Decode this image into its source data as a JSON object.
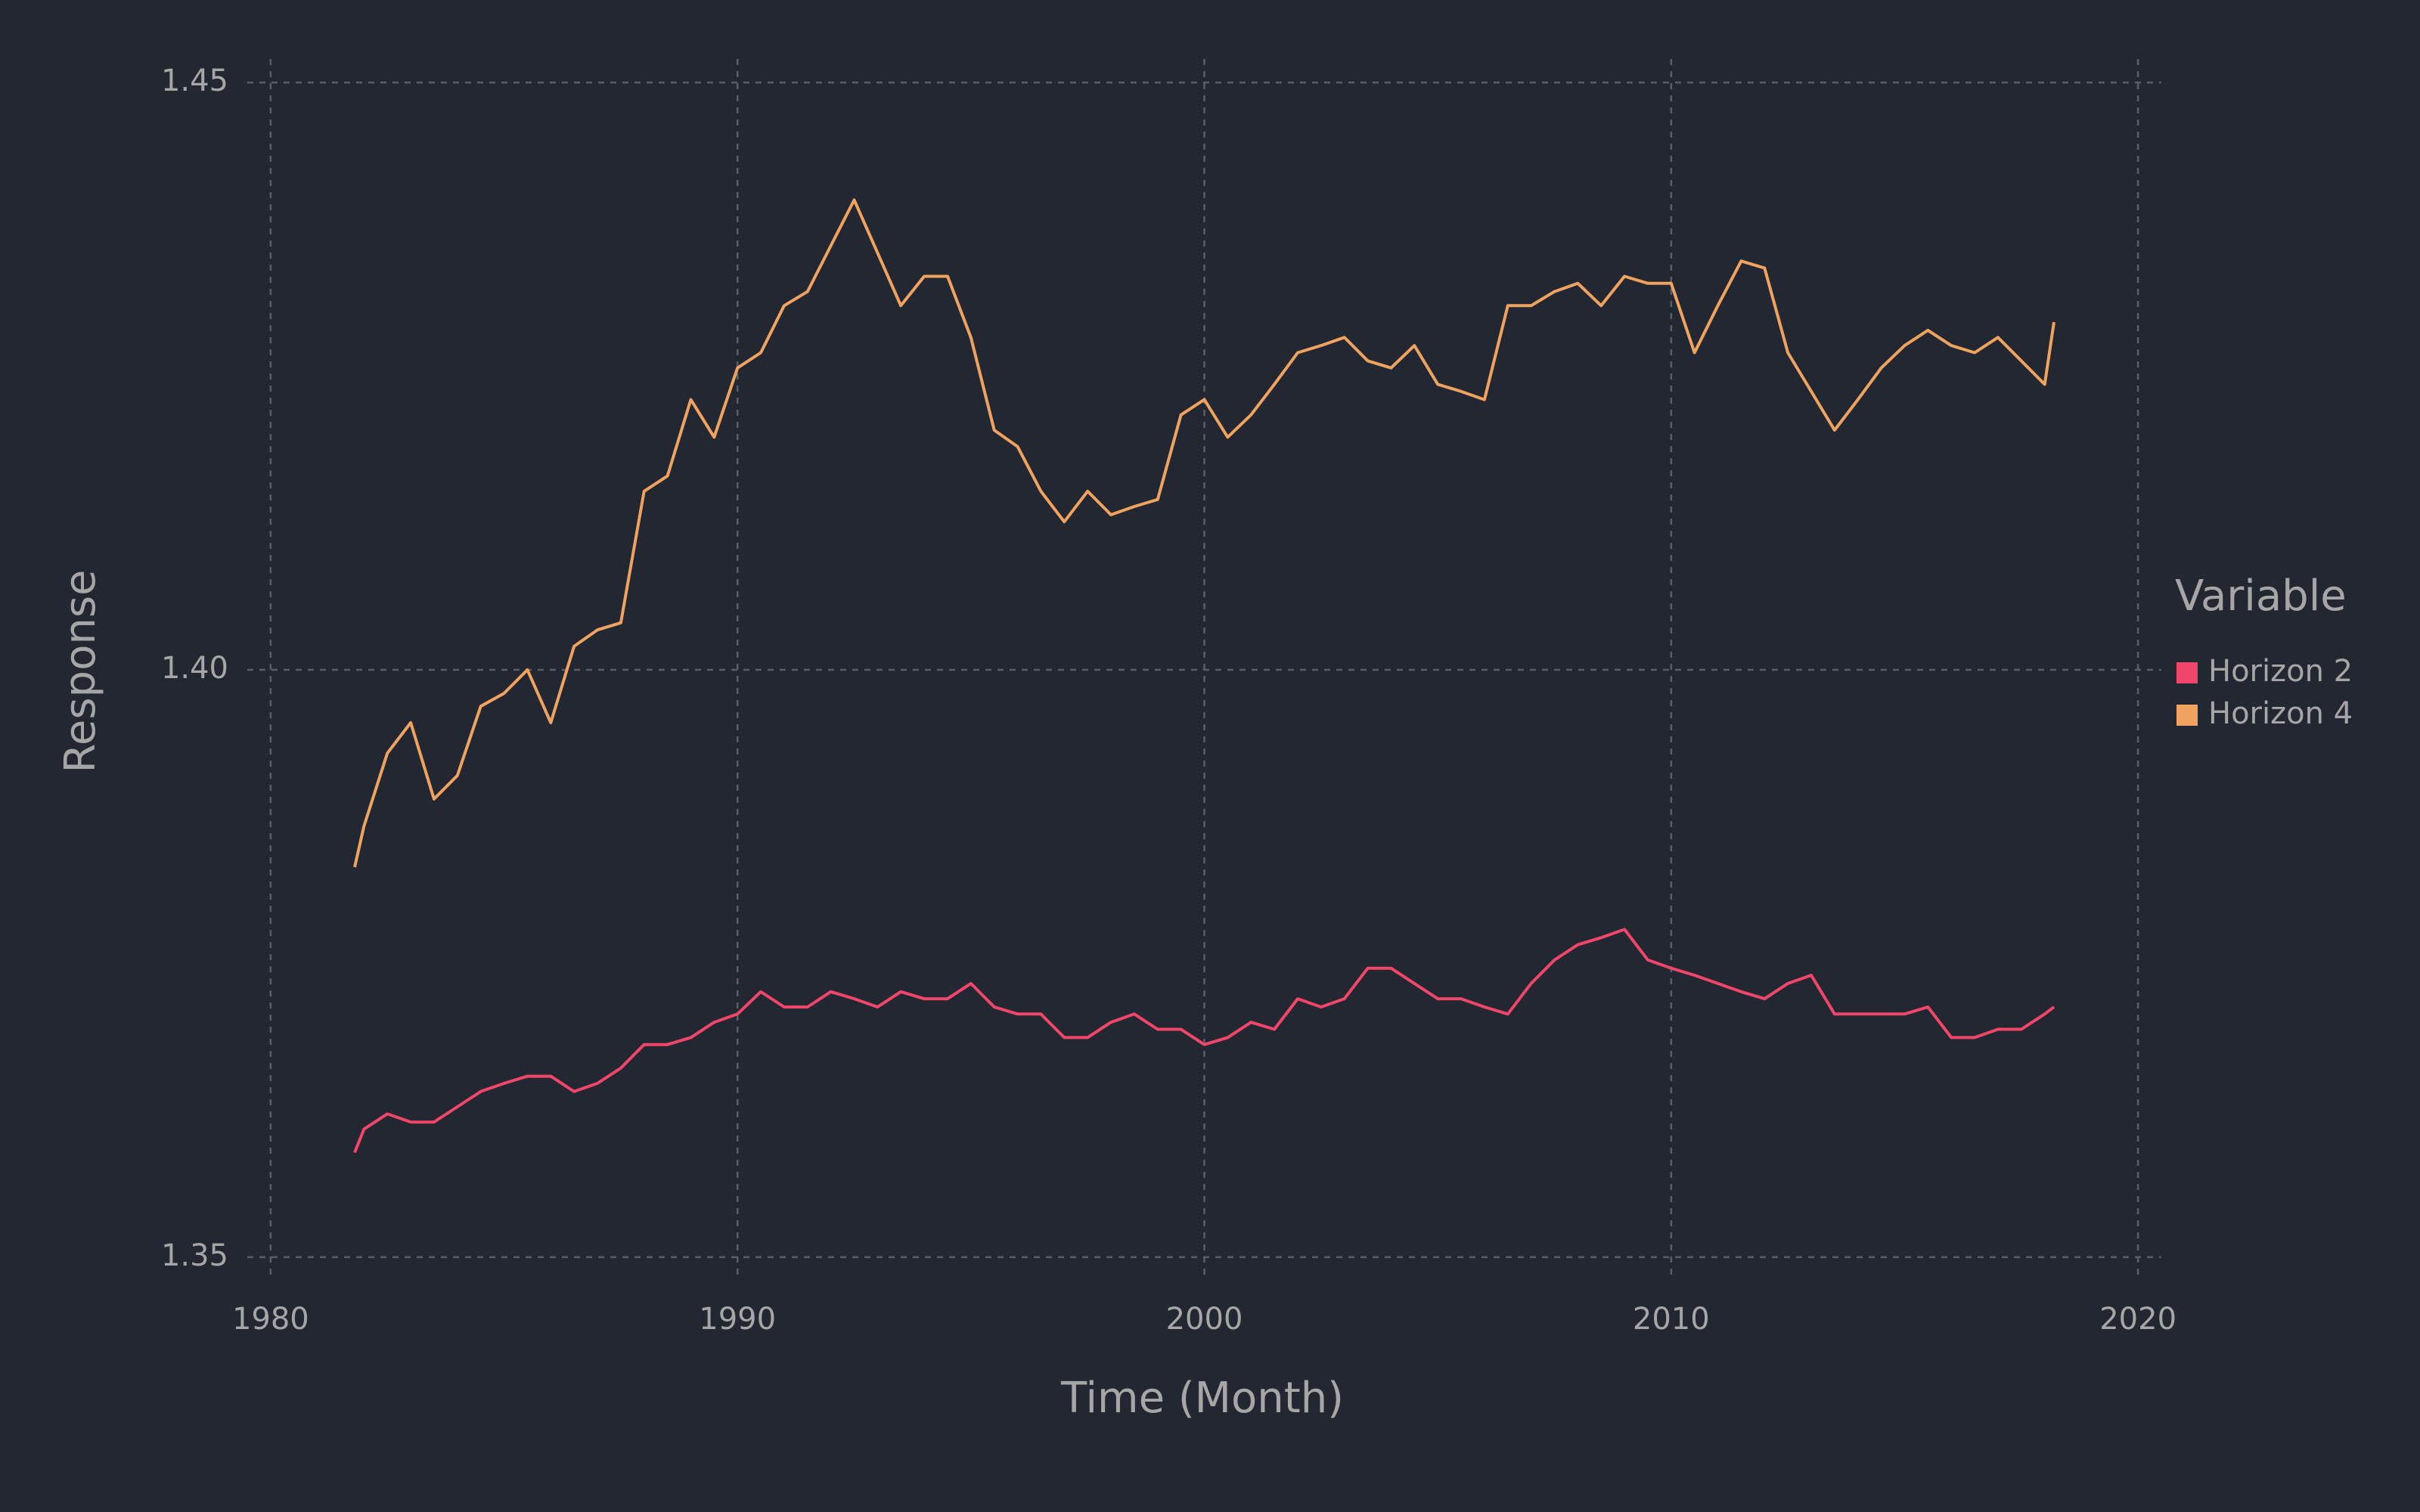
{
  "chart_data": {
    "type": "line",
    "x_label": "Time (Month)",
    "y_label": "Response",
    "legend_title": "Variable",
    "legend_position": "right",
    "grid": true,
    "xlim": [
      1979.5,
      2020.5
    ],
    "ylim": [
      1.348,
      1.452
    ],
    "xticks": [
      1980,
      1990,
      2000,
      2010,
      2020
    ],
    "yticks": [
      {
        "value": 1.35,
        "label": "1.35"
      },
      {
        "value": 1.4,
        "label": "1.40"
      },
      {
        "value": 1.45,
        "label": "1.45"
      }
    ],
    "x": [
      1981.8,
      1982.0,
      1982.5,
      1983.0,
      1983.5,
      1984.0,
      1984.5,
      1985.0,
      1985.5,
      1986.0,
      1986.5,
      1987.0,
      1987.5,
      1988.0,
      1988.5,
      1989.0,
      1989.5,
      1990.0,
      1990.5,
      1991.0,
      1991.5,
      1992.0,
      1992.5,
      1993.0,
      1993.5,
      1994.0,
      1994.5,
      1995.0,
      1995.5,
      1996.0,
      1996.5,
      1997.0,
      1997.5,
      1998.0,
      1998.5,
      1999.0,
      1999.5,
      2000.0,
      2000.5,
      2001.0,
      2001.5,
      2002.0,
      2002.5,
      2003.0,
      2003.5,
      2004.0,
      2004.5,
      2005.0,
      2005.5,
      2006.0,
      2006.5,
      2007.0,
      2007.5,
      2008.0,
      2008.5,
      2009.0,
      2009.5,
      2010.0,
      2010.5,
      2011.0,
      2011.5,
      2012.0,
      2012.5,
      2013.0,
      2013.5,
      2014.0,
      2014.5,
      2015.0,
      2015.5,
      2016.0,
      2016.5,
      2017.0,
      2017.5,
      2018.0,
      2018.2
    ],
    "series": [
      {
        "name": "Horizon 2",
        "color": "#f0466a",
        "values": [
          1.3589,
          1.3609,
          1.3622,
          1.3615,
          1.3615,
          1.3628,
          1.3641,
          1.3648,
          1.3654,
          1.3654,
          1.3641,
          1.3648,
          1.3661,
          1.3681,
          1.3681,
          1.3687,
          1.37,
          1.3707,
          1.3726,
          1.3713,
          1.3713,
          1.3726,
          1.372,
          1.3713,
          1.3726,
          1.372,
          1.372,
          1.3733,
          1.3713,
          1.3707,
          1.3707,
          1.3687,
          1.3687,
          1.37,
          1.3707,
          1.3694,
          1.3694,
          1.3681,
          1.3687,
          1.37,
          1.3694,
          1.372,
          1.3713,
          1.372,
          1.3746,
          1.3746,
          1.3733,
          1.372,
          1.372,
          1.3713,
          1.3707,
          1.3733,
          1.3753,
          1.3766,
          1.3772,
          1.3779,
          1.3753,
          1.3746,
          1.374,
          1.3733,
          1.3726,
          1.372,
          1.3733,
          1.374,
          1.3707,
          1.3707,
          1.3707,
          1.3707,
          1.3713,
          1.3687,
          1.3687,
          1.3694,
          1.3694,
          1.3707,
          1.3713
        ]
      },
      {
        "name": "Horizon 4",
        "color": "#f0a35e",
        "values": [
          1.3832,
          1.3867,
          1.3929,
          1.3955,
          1.389,
          1.391,
          1.3969,
          1.398,
          1.4,
          1.3955,
          1.402,
          1.4034,
          1.404,
          1.4152,
          1.4165,
          1.423,
          1.4198,
          1.4257,
          1.427,
          1.431,
          1.4322,
          1.4361,
          1.44,
          1.4355,
          1.431,
          1.4335,
          1.4335,
          1.4283,
          1.4204,
          1.419,
          1.4152,
          1.4126,
          1.4152,
          1.4132,
          1.4139,
          1.4145,
          1.4217,
          1.423,
          1.4198,
          1.4217,
          1.4243,
          1.427,
          1.4276,
          1.4283,
          1.4263,
          1.4257,
          1.4276,
          1.4243,
          1.4237,
          1.423,
          1.431,
          1.431,
          1.4322,
          1.4329,
          1.431,
          1.4335,
          1.4329,
          1.4329,
          1.427,
          1.431,
          1.4348,
          1.4342,
          1.427,
          1.4237,
          1.4204,
          1.423,
          1.4257,
          1.4276,
          1.4289,
          1.4276,
          1.427,
          1.4283,
          1.4263,
          1.4243,
          1.4296
        ]
      }
    ]
  }
}
